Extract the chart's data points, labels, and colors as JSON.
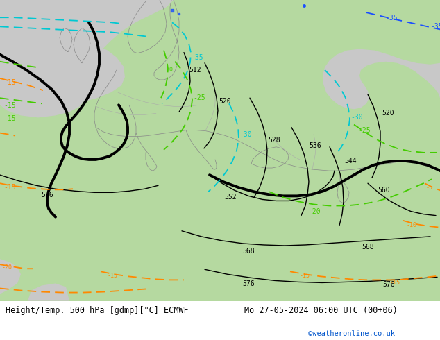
{
  "title_left": "Height/Temp. 500 hPa [gdmp][°C] ECMWF",
  "title_right": "Mo 27-05-2024 06:00 UTC (00+06)",
  "credit": "©weatheronline.co.uk",
  "bg_green": "#b5d9a0",
  "bg_grey": "#c8c8c8",
  "bg_white": "#f5f5f5",
  "border_color": "#888888",
  "z500_color": "#000000",
  "temp_cyan": "#00c8d2",
  "temp_blue": "#1a4fff",
  "temp_green": "#44cc00",
  "temp_orange": "#ff8800",
  "bottom_bg": "#ffffff",
  "credit_color": "#0055cc"
}
